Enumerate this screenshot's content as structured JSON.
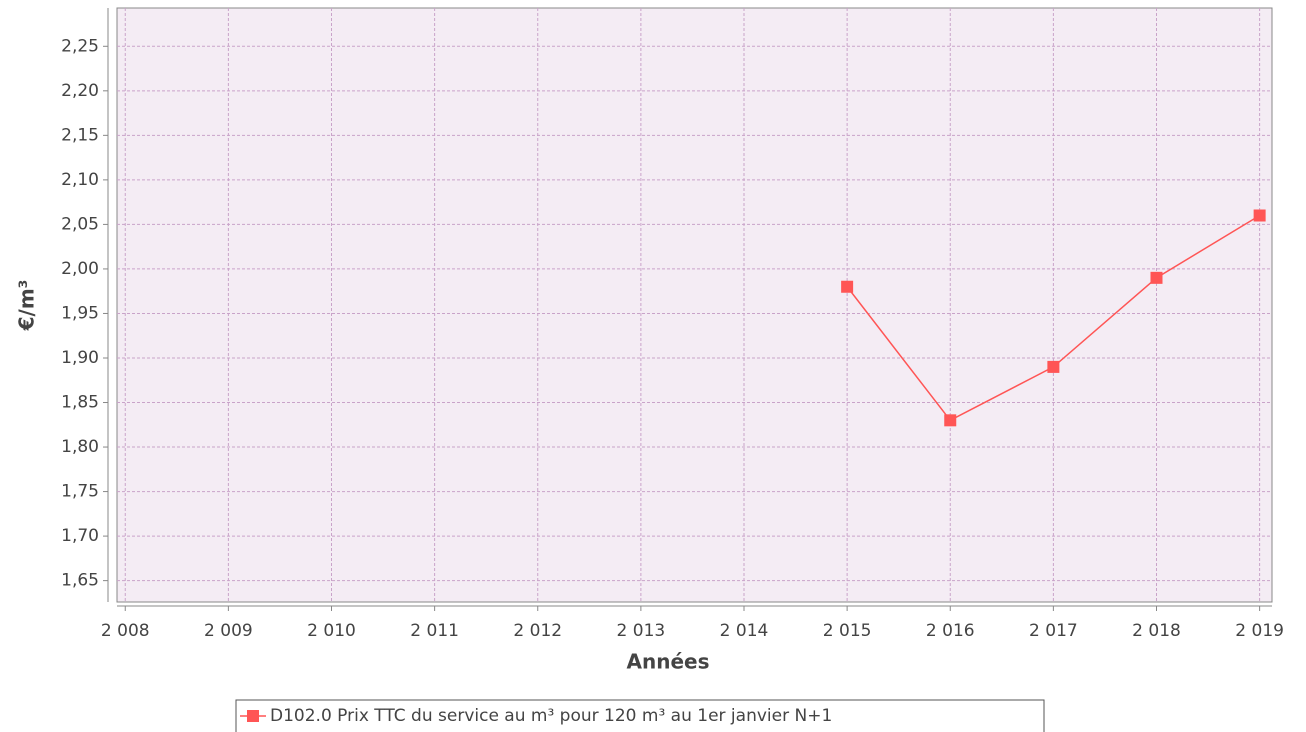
{
  "chart_data": {
    "type": "line",
    "ylabel": "€/m³",
    "xlabel": "Années",
    "x": [
      2015,
      2016,
      2017,
      2018,
      2019
    ],
    "series": [
      {
        "name": "D102.0 Prix TTC du service au m³ pour 120 m³ au 1er janvier N+1",
        "color": "#ff5555",
        "values": [
          1.98,
          1.83,
          1.89,
          1.99,
          2.06
        ]
      }
    ],
    "xlim": [
      2007.92,
      2019.12
    ],
    "ylim": [
      1.626,
      2.293
    ],
    "xticks": [
      {
        "value": 2008,
        "label": "2 008"
      },
      {
        "value": 2009,
        "label": "2 009"
      },
      {
        "value": 2010,
        "label": "2 010"
      },
      {
        "value": 2011,
        "label": "2 011"
      },
      {
        "value": 2012,
        "label": "2 012"
      },
      {
        "value": 2013,
        "label": "2 013"
      },
      {
        "value": 2014,
        "label": "2 014"
      },
      {
        "value": 2015,
        "label": "2 015"
      },
      {
        "value": 2016,
        "label": "2 016"
      },
      {
        "value": 2017,
        "label": "2 017"
      },
      {
        "value": 2018,
        "label": "2 018"
      },
      {
        "value": 2019,
        "label": "2 019"
      }
    ],
    "yticks": [
      {
        "value": 1.65,
        "label": "1,65"
      },
      {
        "value": 1.7,
        "label": "1,70"
      },
      {
        "value": 1.75,
        "label": "1,75"
      },
      {
        "value": 1.8,
        "label": "1,80"
      },
      {
        "value": 1.85,
        "label": "1,85"
      },
      {
        "value": 1.9,
        "label": "1,90"
      },
      {
        "value": 1.95,
        "label": "1,95"
      },
      {
        "value": 2.0,
        "label": "2,00"
      },
      {
        "value": 2.05,
        "label": "2,05"
      },
      {
        "value": 2.1,
        "label": "2,10"
      },
      {
        "value": 2.15,
        "label": "2,15"
      },
      {
        "value": 2.2,
        "label": "2,20"
      },
      {
        "value": 2.25,
        "label": "2,25"
      }
    ],
    "grid": true,
    "legend": "bottom"
  }
}
